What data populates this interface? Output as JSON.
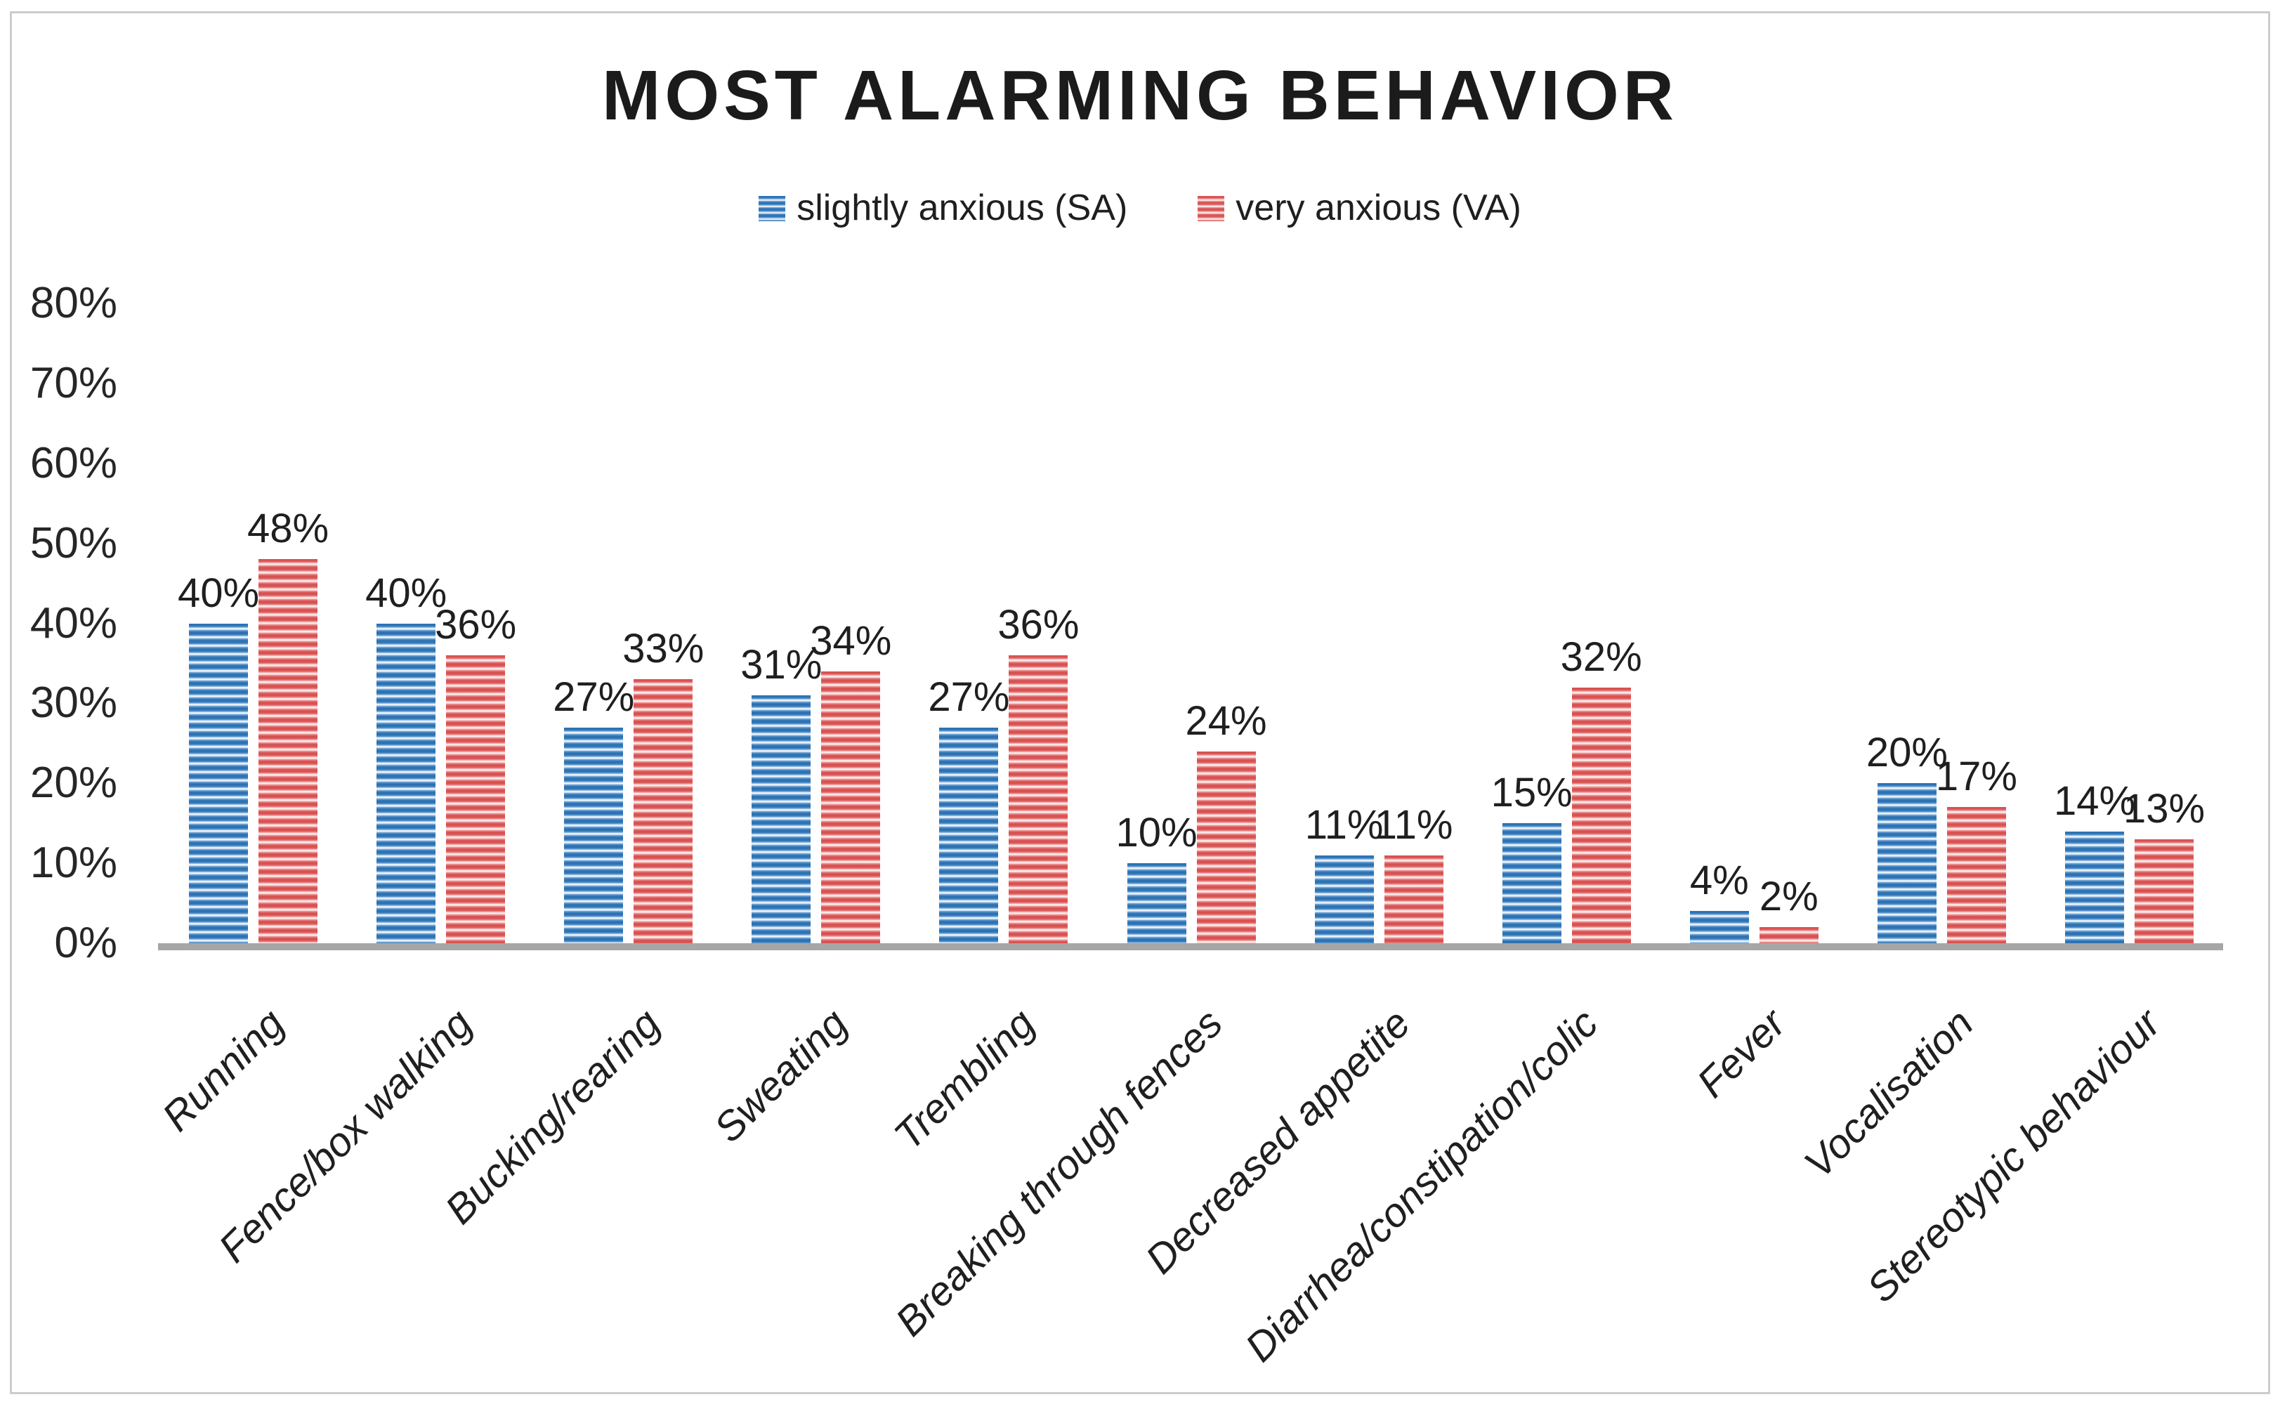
{
  "chart_data": {
    "type": "bar",
    "title": "MOST ALARMING BEHAVIOR",
    "categories": [
      "Running",
      "Fence/box walking",
      "Bucking/rearing",
      "Sweating",
      "Trembling",
      "Breaking through fences",
      "Decreased appetite",
      "Diarrhea/constipation/colic",
      "Fever",
      "Vocalisation",
      "Stereotypic behaviour"
    ],
    "series": [
      {
        "name": "slightly anxious (SA)",
        "color": "#2E74B5",
        "pattern": "horizontal-stripes",
        "values": [
          40,
          40,
          27,
          31,
          27,
          10,
          11,
          15,
          4,
          20,
          14
        ]
      },
      {
        "name": "very anxious (VA)",
        "color": "#D95454",
        "pattern": "horizontal-stripes",
        "values": [
          48,
          36,
          33,
          34,
          36,
          24,
          11,
          32,
          2,
          17,
          13
        ]
      }
    ],
    "data_labels": [
      "40%",
      "48%",
      "40%",
      "36%",
      "27%",
      "33%",
      "31%",
      "34%",
      "27%",
      "36%",
      "10%",
      "24%",
      "11%",
      "11%",
      "15%",
      "32%",
      "4%",
      "2%",
      "20%",
      "17%",
      "14%",
      "13%"
    ],
    "y_axis": {
      "min": 0,
      "max": 80,
      "ticks": [
        "80%",
        "70%",
        "60%",
        "50%",
        "40%",
        "30%",
        "20%",
        "10%",
        "0%"
      ]
    },
    "grid": false,
    "legend_position": "top-center",
    "baseline_color": "#A6A6A6"
  }
}
